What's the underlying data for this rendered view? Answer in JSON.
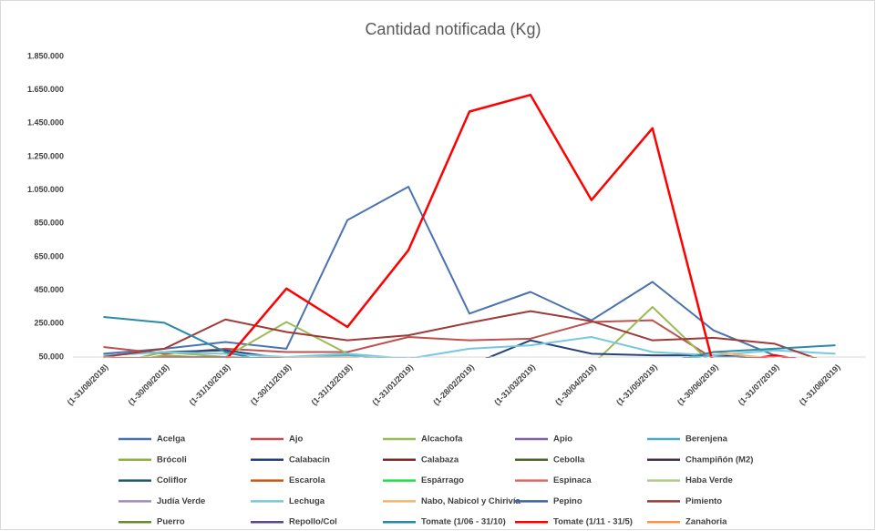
{
  "chart_data": {
    "type": "line",
    "title": "Cantidad notificada  (Kg)",
    "categories": [
      "(1-31/08/2018)",
      "(1-30/09/2018)",
      "(1-31/10/2018)",
      "(1-30/11/2018)",
      "(1-31/12/2018)",
      "(1-31/01/2019)",
      "(1-28/02/2019)",
      "(1-31/03/2019)",
      "(1-30/04/2019)",
      "(1-31/05/2019)",
      "(1-30/06/2019)",
      "(1-31/07/2019)",
      "(1-31/08/2019)"
    ],
    "ylim": [
      50000,
      1850000
    ],
    "yticks": [
      {
        "value": 50000,
        "label": "50.000"
      },
      {
        "value": 250000,
        "label": "250.000"
      },
      {
        "value": 450000,
        "label": "450.000"
      },
      {
        "value": 650000,
        "label": "650.000"
      },
      {
        "value": 850000,
        "label": "850.000"
      },
      {
        "value": 1050000,
        "label": "1.050.000"
      },
      {
        "value": 1250000,
        "label": "1.250.000"
      },
      {
        "value": 1450000,
        "label": "1.450.000"
      },
      {
        "value": 1650000,
        "label": "1.650.000"
      },
      {
        "value": 1850000,
        "label": "1.850.000"
      }
    ],
    "grid": false,
    "legend": "bottom",
    "series": [
      {
        "name": "Acelga",
        "color": "#4a72b0",
        "values": [
          70000,
          100000,
          140000,
          100000,
          870000,
          1070000,
          310000,
          440000,
          270000,
          500000,
          210000,
          60000,
          0
        ]
      },
      {
        "name": "Ajo",
        "color": "#c0504d",
        "values": [
          110000,
          70000,
          100000,
          80000,
          80000,
          170000,
          150000,
          160000,
          260000,
          270000,
          40000,
          40000,
          0
        ]
      },
      {
        "name": "Alcachofa",
        "color": "#9bbb59",
        "values": [
          0,
          80000,
          50000,
          260000,
          70000,
          0,
          0,
          0,
          0,
          350000,
          0,
          0,
          0
        ]
      },
      {
        "name": "Apio",
        "color": "#8064a2",
        "values": [
          0,
          0,
          0,
          0,
          0,
          0,
          0,
          0,
          0,
          0,
          0,
          0,
          0
        ]
      },
      {
        "name": "Berenjena",
        "color": "#4bacc6",
        "values": [
          20000,
          20000,
          30000,
          40000,
          60000,
          40000,
          20000,
          20000,
          20000,
          20000,
          60000,
          40000,
          0
        ]
      },
      {
        "name": "Brócoli",
        "color": "#8cb345",
        "values": [
          0,
          60000,
          40000,
          0,
          0,
          0,
          0,
          0,
          0,
          0,
          0,
          0,
          0
        ]
      },
      {
        "name": "Calabacín",
        "color": "#254379",
        "values": [
          60000,
          80000,
          90000,
          40000,
          40000,
          0,
          0,
          150000,
          70000,
          60000,
          60000,
          40000,
          0
        ]
      },
      {
        "name": "Calabaza",
        "color": "#7f2a2a",
        "values": [
          40000,
          50000,
          50000,
          40000,
          40000,
          0,
          0,
          0,
          0,
          0,
          0,
          0,
          0
        ]
      },
      {
        "name": "Cebolla",
        "color": "#4f6228",
        "values": [
          0,
          0,
          0,
          0,
          0,
          0,
          0,
          0,
          0,
          0,
          0,
          60000,
          0
        ]
      },
      {
        "name": "Champiñón (M2)",
        "color": "#403151",
        "values": [
          0,
          0,
          0,
          0,
          0,
          0,
          0,
          0,
          0,
          0,
          0,
          0,
          0
        ]
      },
      {
        "name": "Coliflor",
        "color": "#215967",
        "values": [
          0,
          40000,
          40000,
          0,
          0,
          0,
          0,
          0,
          0,
          0,
          0,
          0,
          0
        ]
      },
      {
        "name": "Escarola",
        "color": "#c55a11",
        "values": [
          0,
          0,
          0,
          0,
          0,
          0,
          0,
          0,
          0,
          0,
          0,
          0,
          0
        ]
      },
      {
        "name": "Espárrago",
        "color": "#22e04a",
        "values": [
          0,
          0,
          0,
          0,
          0,
          0,
          0,
          0,
          0,
          0,
          0,
          0,
          0
        ]
      },
      {
        "name": "Espinaca",
        "color": "#d86b68",
        "values": [
          0,
          0,
          0,
          0,
          0,
          0,
          0,
          0,
          0,
          0,
          0,
          0,
          0
        ]
      },
      {
        "name": "Haba Verde",
        "color": "#b2c98b",
        "values": [
          0,
          0,
          0,
          0,
          0,
          0,
          0,
          0,
          0,
          0,
          0,
          0,
          0
        ]
      },
      {
        "name": "Judía Verde",
        "color": "#9e8dc0",
        "values": [
          0,
          0,
          0,
          0,
          0,
          0,
          0,
          0,
          0,
          0,
          40000,
          0,
          0
        ]
      },
      {
        "name": "Lechuga",
        "color": "#77c8de",
        "values": [
          60000,
          80000,
          70000,
          50000,
          70000,
          40000,
          100000,
          120000,
          170000,
          80000,
          60000,
          90000,
          70000
        ]
      },
      {
        "name": "Nabo, Nabicol y Chirivía",
        "color": "#f9b26e",
        "values": [
          40000,
          40000,
          40000,
          40000,
          50000,
          0,
          0,
          0,
          0,
          0,
          80000,
          40000,
          0
        ]
      },
      {
        "name": "Pepino",
        "color": "#3c64a8",
        "values": [
          0,
          0,
          0,
          0,
          0,
          0,
          0,
          0,
          0,
          0,
          0,
          0,
          0
        ]
      },
      {
        "name": "Pimiento",
        "color": "#9c3b38",
        "values": [
          50000,
          100000,
          275000,
          200000,
          150000,
          180000,
          255000,
          325000,
          265000,
          150000,
          165000,
          130000,
          0
        ]
      },
      {
        "name": "Puerro",
        "color": "#6a8a2e",
        "values": [
          0,
          0,
          0,
          0,
          0,
          0,
          0,
          0,
          0,
          0,
          0,
          0,
          0
        ]
      },
      {
        "name": "Repollo/Col",
        "color": "#5b4a86",
        "values": [
          0,
          0,
          0,
          0,
          0,
          0,
          0,
          0,
          0,
          0,
          0,
          0,
          0
        ]
      },
      {
        "name": "Tomate (1/06 - 31/10)",
        "color": "#2a8aa5",
        "values": [
          290000,
          255000,
          80000,
          0,
          0,
          0,
          0,
          0,
          0,
          0,
          80000,
          100000,
          120000
        ]
      },
      {
        "name": "Tomate  (1/11 - 31/5)",
        "color": "#ff0000",
        "values": [
          0,
          0,
          30000,
          460000,
          230000,
          690000,
          1520000,
          1620000,
          990000,
          1420000,
          0,
          60000,
          0
        ]
      },
      {
        "name": "Zanahoria",
        "color": "#f79646",
        "values": [
          0,
          0,
          0,
          0,
          0,
          0,
          0,
          0,
          0,
          0,
          0,
          0,
          0
        ]
      }
    ]
  }
}
